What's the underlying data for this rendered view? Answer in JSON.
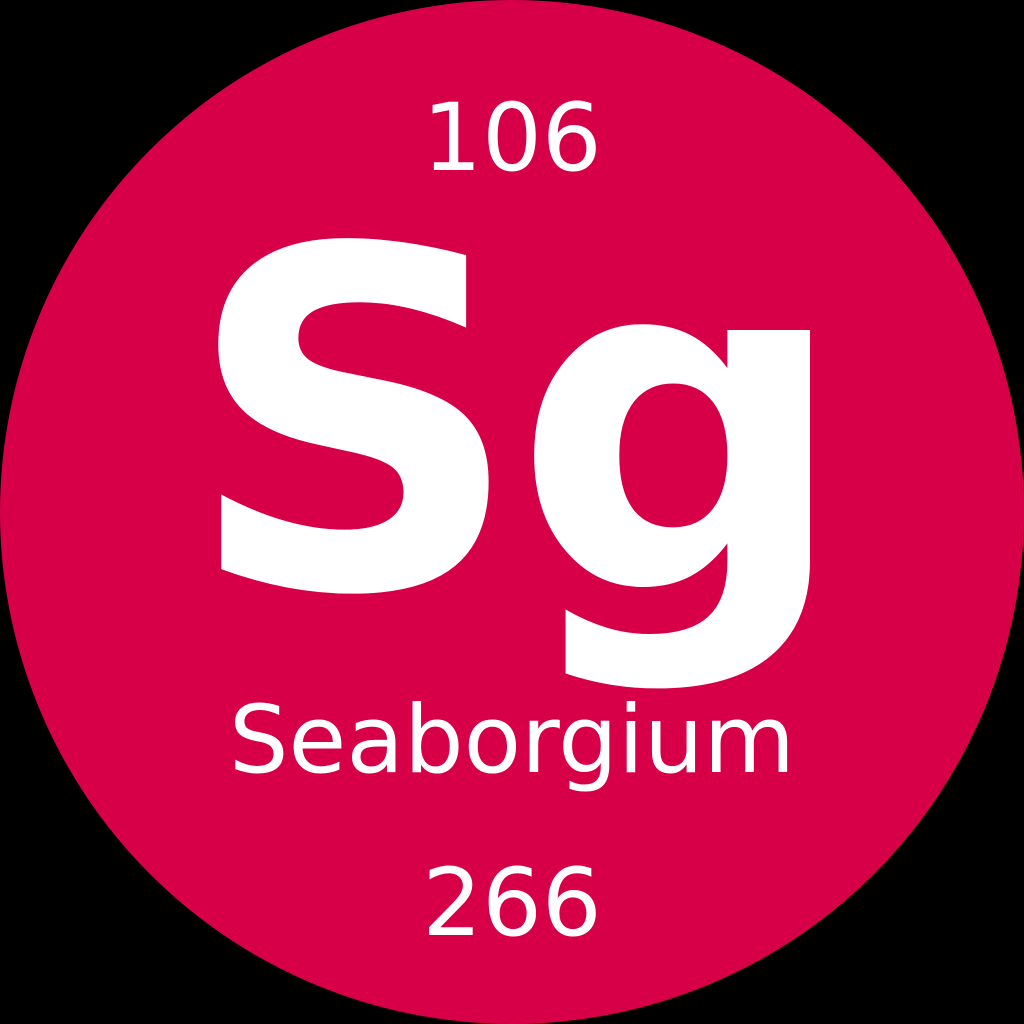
{
  "element": {
    "atomic_number": "106",
    "symbol": "Sg",
    "name": "Seaborgium",
    "atomic_mass": "266"
  },
  "colors": {
    "background": "#000000",
    "circle": "#d70048",
    "text": "#ffffff"
  }
}
